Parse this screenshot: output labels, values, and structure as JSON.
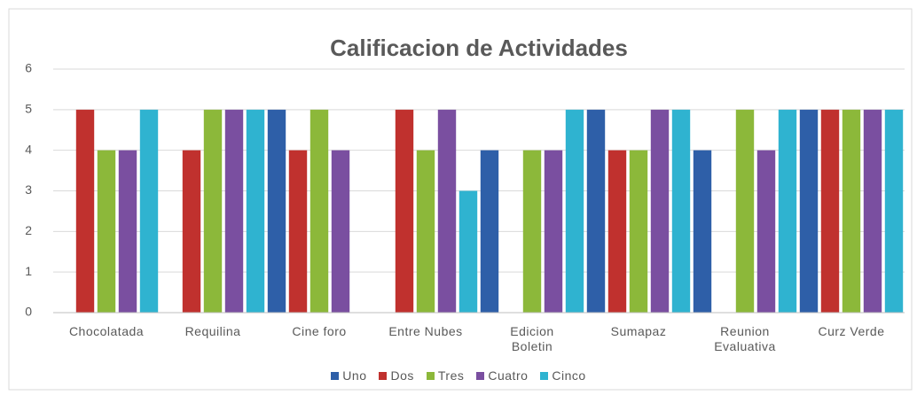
{
  "chart_data": {
    "type": "bar",
    "title": "Calificacion de Actividades",
    "categories": [
      "Chocolatada",
      "Requilina",
      "Cine foro",
      "Entre Nubes",
      "Edicion Boletin",
      "Sumapaz",
      "Reunion Evaluativa",
      "Curz Verde"
    ],
    "series": [
      {
        "name": "Uno",
        "color": "#2e5fa8",
        "values": [
          null,
          null,
          5,
          null,
          4,
          5,
          4,
          5
        ]
      },
      {
        "name": "Dos",
        "color": "#c0312e",
        "values": [
          5,
          4,
          4,
          5,
          null,
          4,
          null,
          5
        ]
      },
      {
        "name": "Tres",
        "color": "#8cb83a",
        "values": [
          4,
          5,
          5,
          4,
          4,
          4,
          5,
          5
        ]
      },
      {
        "name": "Cuatro",
        "color": "#7a4fa0",
        "values": [
          4,
          5,
          4,
          5,
          4,
          5,
          4,
          5
        ]
      },
      {
        "name": "Cinco",
        "color": "#2fb3d0",
        "values": [
          5,
          5,
          null,
          3,
          5,
          5,
          5,
          5
        ]
      }
    ],
    "ylim": [
      0,
      6
    ],
    "yticks": [
      0,
      1,
      2,
      3,
      4,
      5,
      6
    ],
    "grid": true,
    "legend": "bottom"
  }
}
